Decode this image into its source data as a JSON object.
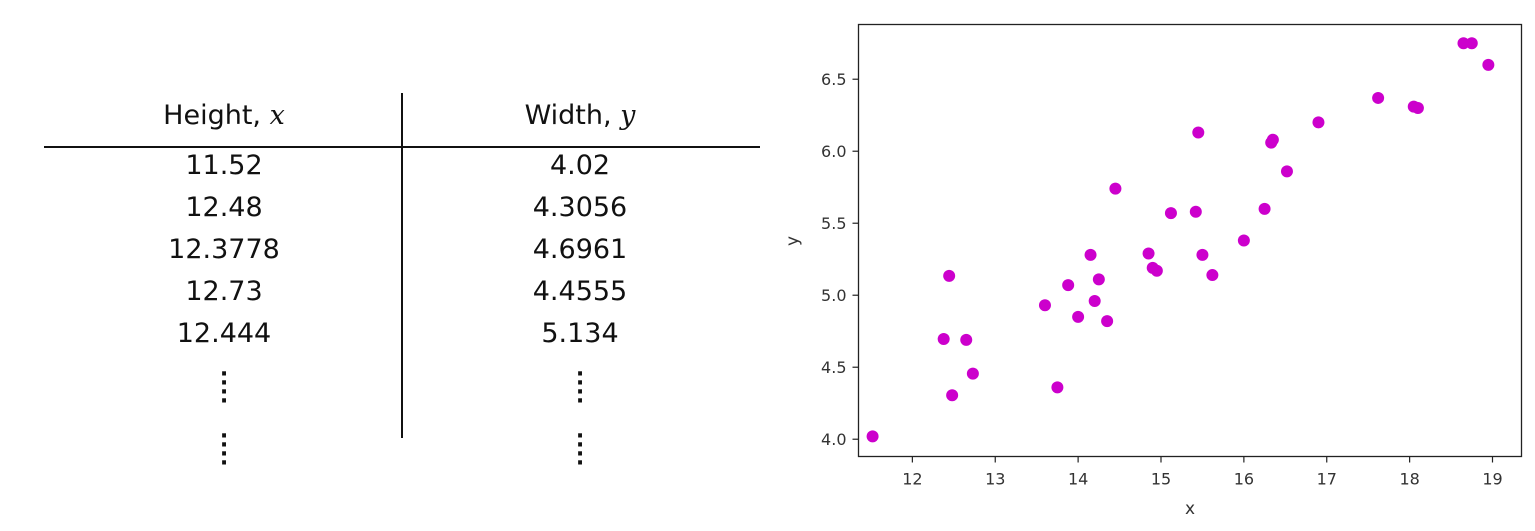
{
  "table": {
    "header_x_label": "Height, ",
    "header_x_var": "x",
    "header_y_label": "Width, ",
    "header_y_var": "y",
    "rows": [
      [
        "11.52",
        "4.02"
      ],
      [
        "12.48",
        "4.3056"
      ],
      [
        "12.3778",
        "4.6961"
      ],
      [
        "12.73",
        "4.4555"
      ],
      [
        "12.444",
        "5.134"
      ]
    ]
  },
  "chart_data": {
    "type": "scatter",
    "xlabel": "x",
    "ylabel": "y",
    "xlim": [
      11.35,
      19.35
    ],
    "ylim": [
      3.88,
      6.88
    ],
    "xticks": [
      12,
      13,
      14,
      15,
      16,
      17,
      18,
      19
    ],
    "yticks": [
      4.0,
      4.5,
      5.0,
      5.5,
      6.0,
      6.5
    ],
    "ytick_labels": [
      "4.0",
      "4.5",
      "5.0",
      "5.5",
      "6.0",
      "6.5"
    ],
    "point_color": "#cc00cc",
    "grid": false,
    "x": [
      11.52,
      12.48,
      12.3778,
      12.73,
      12.444,
      12.65,
      13.6,
      13.75,
      13.88,
      14.0,
      14.15,
      14.2,
      14.25,
      14.35,
      14.45,
      14.85,
      14.9,
      14.95,
      15.12,
      15.42,
      15.45,
      15.5,
      15.62,
      16.0,
      16.25,
      16.33,
      16.35,
      16.52,
      16.9,
      17.62,
      18.05,
      18.1,
      18.65,
      18.75,
      18.95
    ],
    "y": [
      4.02,
      4.3056,
      4.6961,
      4.4555,
      5.134,
      4.69,
      4.93,
      4.36,
      5.07,
      4.85,
      5.28,
      4.96,
      5.11,
      4.82,
      5.74,
      5.29,
      5.19,
      5.17,
      5.57,
      5.58,
      6.13,
      5.28,
      5.14,
      5.38,
      5.6,
      6.06,
      6.08,
      5.86,
      6.2,
      6.37,
      6.31,
      6.3,
      6.75,
      6.75,
      6.6
    ]
  }
}
